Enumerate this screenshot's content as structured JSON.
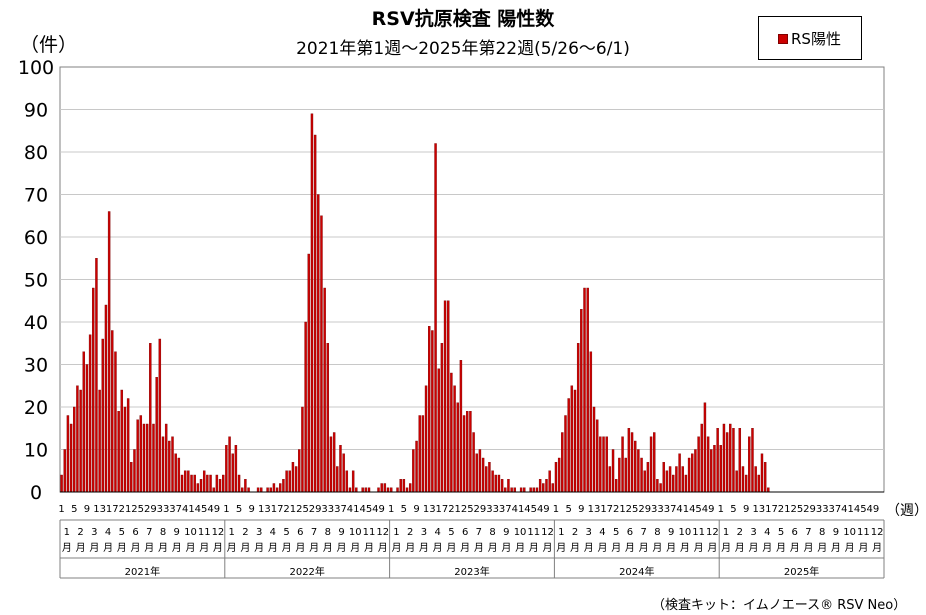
{
  "title": "RSV抗原検査 陽性数",
  "subtitle": "2021年第1週〜2025年第22週(5/26〜6/1)",
  "y_unit": "（件）",
  "x_unit": "（週）",
  "footnote": "（検査キット：イムノエース® RSV Neo）",
  "colors": {
    "bar_fill": "#cc0000",
    "bar_stroke": "#7a0000",
    "grid": "#c8c8c8"
  },
  "chart_data": {
    "type": "bar",
    "legend": {
      "position": "top-right",
      "label": "RS陽性"
    },
    "ylim": [
      0,
      100
    ],
    "yticks": [
      0,
      10,
      20,
      30,
      40,
      50,
      60,
      70,
      80,
      90,
      100
    ],
    "grid": true,
    "weeks_per_year": 52,
    "week_tick_labels": [
      "1",
      "5",
      "9",
      "13",
      "17",
      "21",
      "25",
      "29",
      "33",
      "37",
      "41",
      "45",
      "49"
    ],
    "month_labels": [
      "1",
      "2",
      "3",
      "4",
      "5",
      "6",
      "7",
      "8",
      "9",
      "10",
      "11",
      "12"
    ],
    "month_suffix": "月",
    "years": [
      "2021年",
      "2022年",
      "2023年",
      "2024年",
      "2025年"
    ],
    "series": [
      {
        "name": "RS陽性",
        "values": [
          4,
          10,
          18,
          16,
          20,
          25,
          24,
          33,
          30,
          37,
          48,
          55,
          24,
          36,
          44,
          66,
          38,
          33,
          19,
          24,
          20,
          22,
          7,
          10,
          17,
          18,
          16,
          16,
          35,
          16,
          27,
          36,
          13,
          16,
          12,
          13,
          9,
          8,
          4,
          5,
          5,
          4,
          4,
          2,
          3,
          5,
          4,
          4,
          1,
          4,
          3,
          4,
          11,
          13,
          9,
          11,
          4,
          1,
          3,
          1,
          0,
          0,
          1,
          1,
          0,
          1,
          1,
          2,
          1,
          2,
          3,
          5,
          5,
          7,
          6,
          10,
          20,
          40,
          56,
          89,
          84,
          70,
          65,
          48,
          35,
          13,
          14,
          6,
          11,
          9,
          5,
          1,
          5,
          1,
          0,
          1,
          1,
          1,
          0,
          0,
          1,
          2,
          2,
          1,
          1,
          0,
          1,
          3,
          3,
          1,
          2,
          10,
          12,
          18,
          18,
          25,
          39,
          38,
          82,
          29,
          35,
          45,
          45,
          28,
          25,
          21,
          31,
          18,
          19,
          19,
          14,
          9,
          10,
          8,
          6,
          7,
          5,
          4,
          4,
          3,
          1,
          3,
          1,
          1,
          0,
          1,
          1,
          0,
          1,
          1,
          1,
          3,
          2,
          3,
          5,
          2,
          7,
          8,
          14,
          18,
          22,
          25,
          24,
          35,
          43,
          48,
          48,
          33,
          20,
          17,
          13,
          13,
          13,
          6,
          10,
          3,
          8,
          13,
          8,
          15,
          14,
          12,
          10,
          8,
          5,
          7,
          13,
          14,
          3,
          2,
          7,
          5,
          6,
          4,
          6,
          9,
          6,
          4,
          8,
          9,
          10,
          13,
          16,
          21,
          13,
          10,
          11,
          15,
          11,
          16,
          14,
          16,
          15,
          5,
          15,
          6,
          4,
          13,
          15,
          6,
          4,
          9,
          7,
          1
        ]
      }
    ]
  }
}
